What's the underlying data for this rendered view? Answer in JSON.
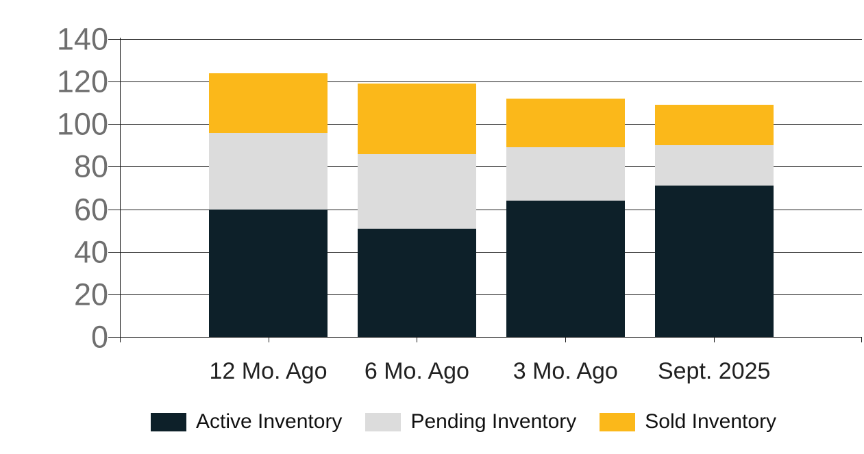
{
  "chart_data": {
    "type": "bar",
    "stacked": true,
    "title": "",
    "xlabel": "",
    "ylabel": "",
    "categories": [
      "12 Mo. Ago",
      "6 Mo. Ago",
      "3 Mo. Ago",
      "Sept. 2025"
    ],
    "series": [
      {
        "name": "Active Inventory",
        "color": "#0d2029",
        "values": [
          60,
          51,
          64,
          71
        ]
      },
      {
        "name": "Pending Inventory",
        "color": "#dcdcdc",
        "values": [
          36,
          35,
          25,
          19
        ]
      },
      {
        "name": "Sold Inventory",
        "color": "#fbb81a",
        "values": [
          28,
          33,
          23,
          19
        ]
      }
    ],
    "stack_totals": [
      124,
      119,
      112,
      109
    ],
    "y_ticks": [
      0,
      20,
      40,
      60,
      80,
      100,
      120,
      140
    ],
    "ylim": [
      0,
      140
    ],
    "grid": "horizontal",
    "legend_position": "bottom"
  },
  "colors": {
    "background": "#ffffff",
    "grid_line": "#1a1a1a",
    "y_label_text": "#6f6f6f",
    "x_label_text": "#212121",
    "legend_text": "#111111"
  }
}
